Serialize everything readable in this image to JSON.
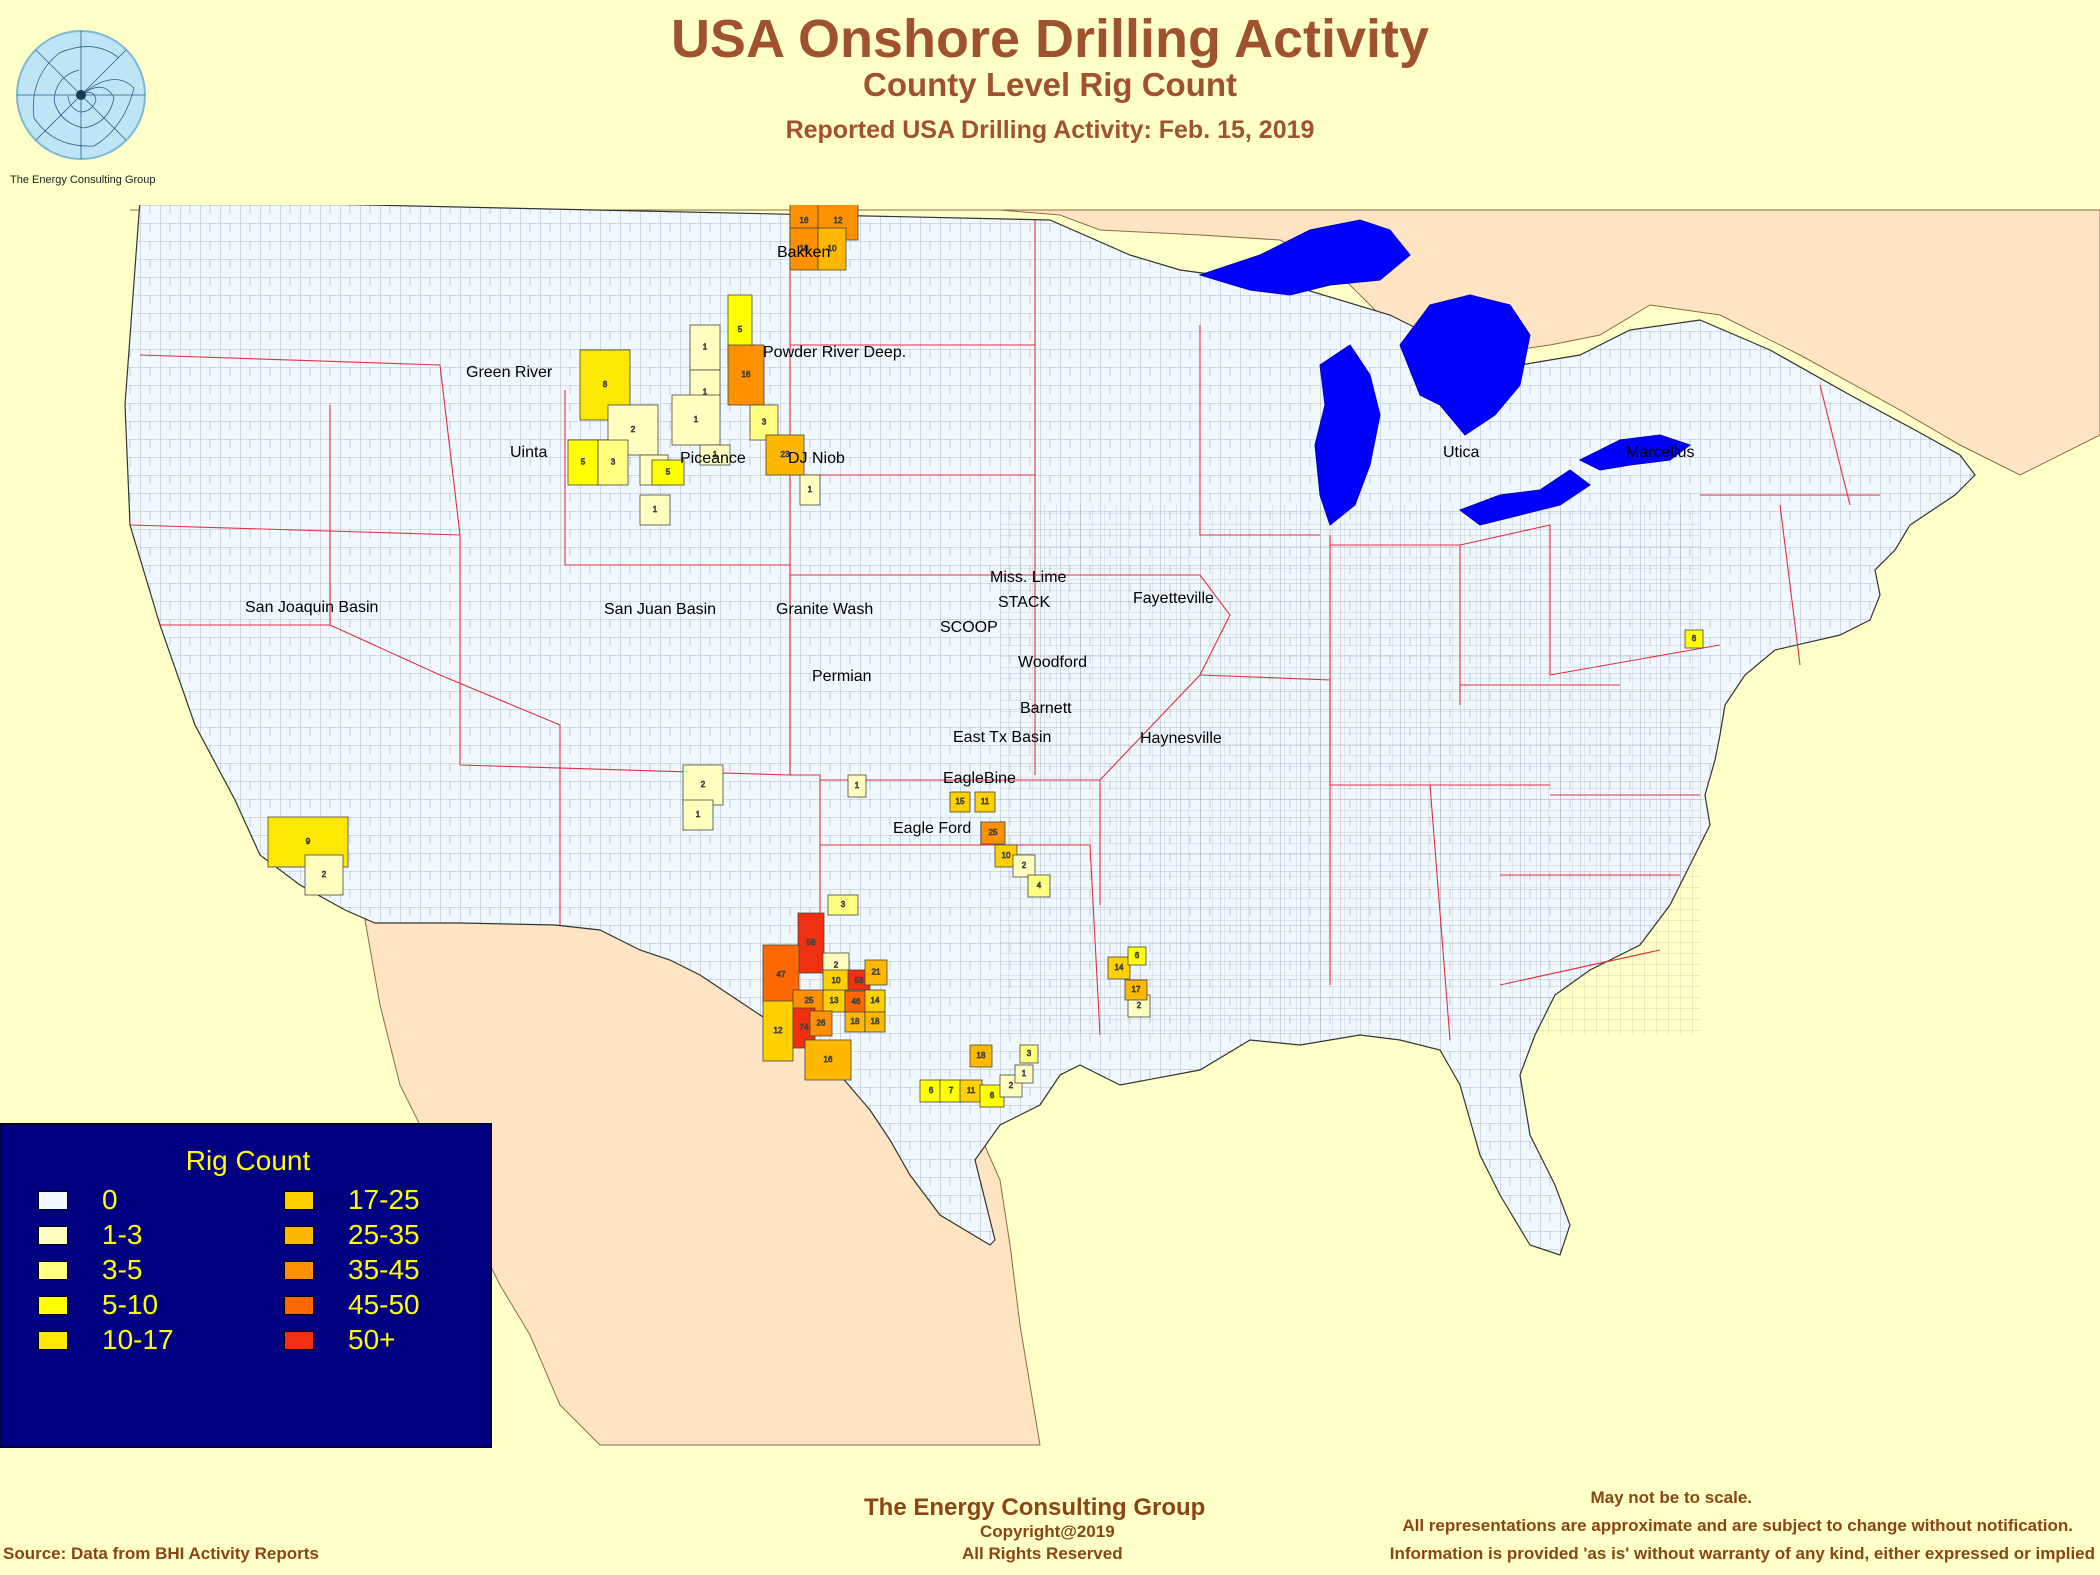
{
  "title": "USA Onshore Drilling Activity",
  "subtitle": "County Level Rig Count",
  "report_date": "Reported USA Drilling Activity: Feb. 15, 2019",
  "logo_caption": "The Energy Consulting Group",
  "legend": {
    "title": "Rig Count",
    "items": [
      {
        "label": "0",
        "color": "#f0f8ff"
      },
      {
        "label": "1-3",
        "color": "#ffffc0"
      },
      {
        "label": "3-5",
        "color": "#ffff80"
      },
      {
        "label": "5-10",
        "color": "#ffff00"
      },
      {
        "label": "10-17",
        "color": "#ffe800"
      },
      {
        "label": "17-25",
        "color": "#ffd000"
      },
      {
        "label": "25-35",
        "color": "#ffb800"
      },
      {
        "label": "35-45",
        "color": "#ff9000"
      },
      {
        "label": "45-50",
        "color": "#ff6800"
      },
      {
        "label": "50+",
        "color": "#f03010"
      }
    ]
  },
  "basins": [
    {
      "name": "Bakken"
    },
    {
      "name": "Powder River Deep."
    },
    {
      "name": "Green River"
    },
    {
      "name": "Uinta"
    },
    {
      "name": "Piceance"
    },
    {
      "name": "DJ Niob"
    },
    {
      "name": "San Joaquin Basin"
    },
    {
      "name": "San Juan Basin"
    },
    {
      "name": "Granite Wash"
    },
    {
      "name": "Miss. Lime"
    },
    {
      "name": "STACK"
    },
    {
      "name": "SCOOP"
    },
    {
      "name": "Woodford"
    },
    {
      "name": "Fayetteville"
    },
    {
      "name": "Permian"
    },
    {
      "name": "Barnett"
    },
    {
      "name": "East Tx Basin"
    },
    {
      "name": "Haynesville"
    },
    {
      "name": "EagleBine"
    },
    {
      "name": "Eagle Ford"
    },
    {
      "name": "Utica"
    },
    {
      "name": "Marcellus"
    }
  ],
  "counties": [
    {
      "v": "1",
      "c": 4
    },
    {
      "v": "16",
      "c": 7
    },
    {
      "v": "12",
      "c": 7
    },
    {
      "v": "18",
      "c": 7
    },
    {
      "v": "10",
      "c": 6
    },
    {
      "v": "5",
      "c": 3
    },
    {
      "v": "1",
      "c": 1
    },
    {
      "v": "16",
      "c": 7
    },
    {
      "v": "1",
      "c": 1
    },
    {
      "v": "8",
      "c": 4
    },
    {
      "v": "2",
      "c": 1
    },
    {
      "v": "1",
      "c": 1
    },
    {
      "v": "3",
      "c": 2
    },
    {
      "v": "5",
      "c": 3
    },
    {
      "v": "3",
      "c": 2
    },
    {
      "v": "1",
      "c": 1
    },
    {
      "v": "5",
      "c": 3
    },
    {
      "v": "1",
      "c": 1
    },
    {
      "v": "1",
      "c": 1
    },
    {
      "v": "23",
      "c": 6
    },
    {
      "v": "1",
      "c": 1
    },
    {
      "v": "9",
      "c": 4
    },
    {
      "v": "2",
      "c": 1
    },
    {
      "v": "2",
      "c": 1
    },
    {
      "v": "1",
      "c": 1
    },
    {
      "v": "1",
      "c": 1
    },
    {
      "v": "3",
      "c": 2
    },
    {
      "v": "58",
      "c": 9
    },
    {
      "v": "47",
      "c": 8
    },
    {
      "v": "2",
      "c": 1
    },
    {
      "v": "10",
      "c": 5
    },
    {
      "v": "53",
      "c": 9
    },
    {
      "v": "21",
      "c": 6
    },
    {
      "v": "25",
      "c": 7
    },
    {
      "v": "13",
      "c": 5
    },
    {
      "v": "3",
      "c": 2
    },
    {
      "v": "46",
      "c": 8
    },
    {
      "v": "14",
      "c": 5
    },
    {
      "v": "12",
      "c": 5
    },
    {
      "v": "74",
      "c": 9
    },
    {
      "v": "26",
      "c": 7
    },
    {
      "v": "18",
      "c": 6
    },
    {
      "v": "18",
      "c": 6
    },
    {
      "v": "16",
      "c": 6
    },
    {
      "v": "15",
      "c": 5
    },
    {
      "v": "11",
      "c": 5
    },
    {
      "v": "25",
      "c": 7
    },
    {
      "v": "10",
      "c": 5
    },
    {
      "v": "2",
      "c": 1
    },
    {
      "v": "4",
      "c": 2
    },
    {
      "v": "14",
      "c": 5
    },
    {
      "v": "6",
      "c": 3
    },
    {
      "v": "2",
      "c": 1
    },
    {
      "v": "17",
      "c": 6
    },
    {
      "v": "18",
      "c": 6
    },
    {
      "v": "6",
      "c": 3
    },
    {
      "v": "7",
      "c": 3
    },
    {
      "v": "11",
      "c": 5
    },
    {
      "v": "6",
      "c": 3
    },
    {
      "v": "2",
      "c": 1
    },
    {
      "v": "1",
      "c": 1
    },
    {
      "v": "3",
      "c": 2
    },
    {
      "v": "6",
      "c": 3
    }
  ],
  "footer": {
    "company": "The Energy Consulting Group",
    "copyright": "Copyright@2019",
    "rights": "All Rights Reserved",
    "source": "Source: Data from BHI Activity Reports",
    "disclaimer1": "May not be to scale.",
    "disclaimer2": "All representations are approximate and are subject to change without notification.",
    "disclaimer3": "Information is provided 'as is' without warranty of any kind, either expressed or implied"
  }
}
